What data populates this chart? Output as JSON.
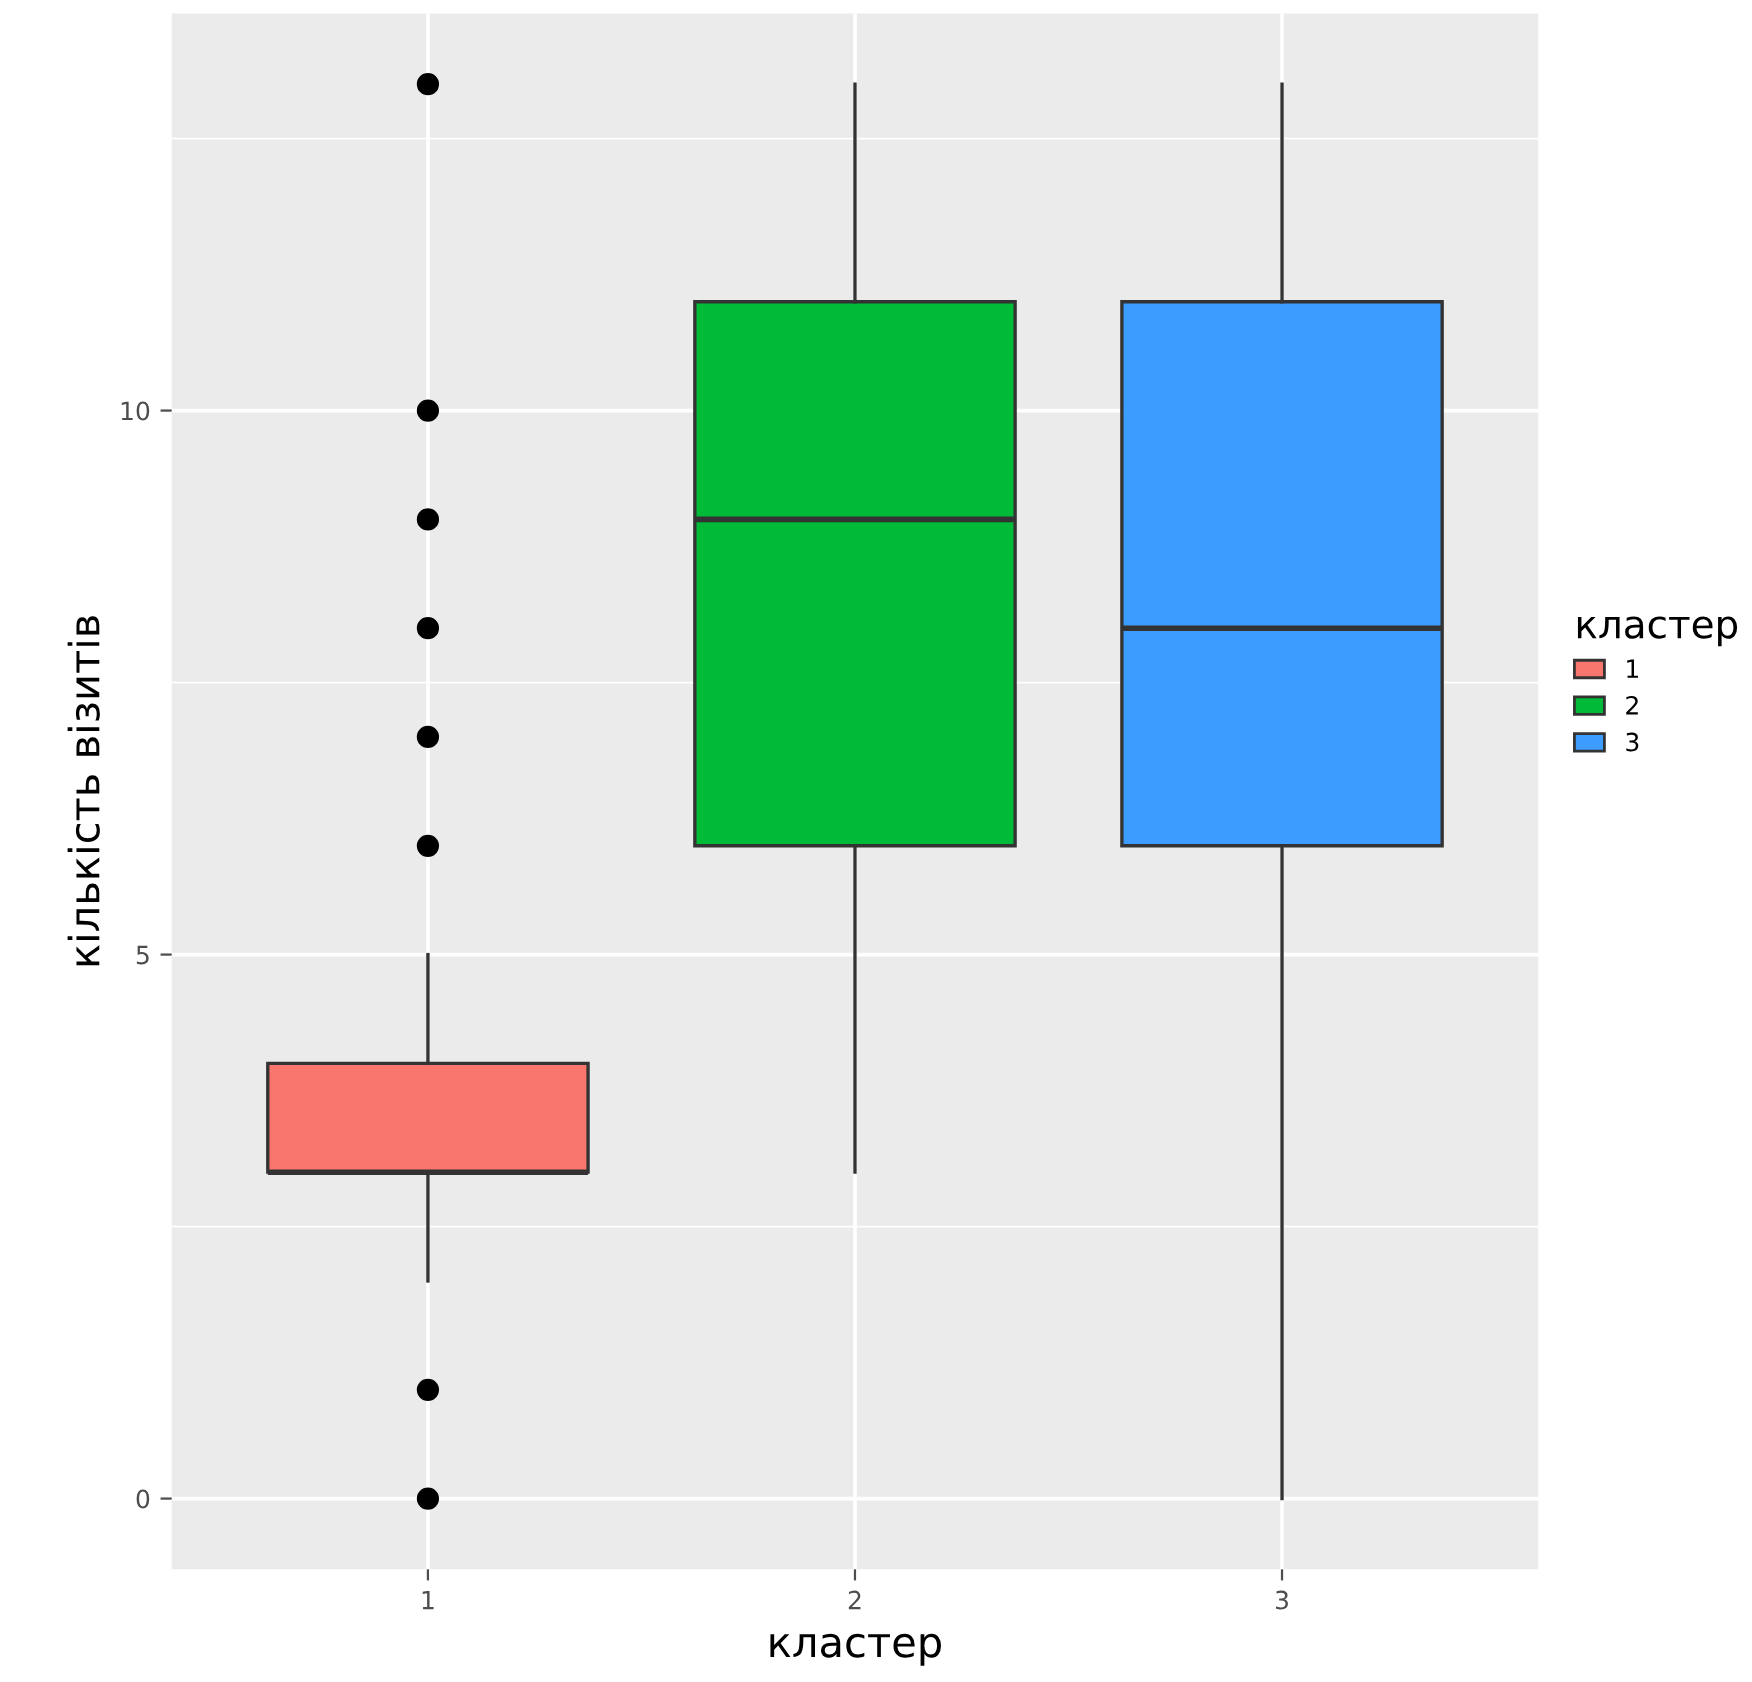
{
  "chart_data": {
    "type": "box",
    "xlabel": "кластер",
    "ylabel": "кількість візитів",
    "legend_title": "кластер",
    "categories": [
      "1",
      "2",
      "3"
    ],
    "series": [
      {
        "name": "1",
        "color": "#f8766d",
        "boxes": [
          {
            "low": 2,
            "q1": 3,
            "median": 3,
            "q3": 4,
            "high": 5,
            "outliers": [
              0,
              1,
              6,
              7,
              8,
              9,
              10,
              13
            ]
          },
          null,
          null
        ]
      },
      {
        "name": "2",
        "color": "#00ba38",
        "boxes": [
          null,
          {
            "low": 3,
            "q1": 6,
            "median": 9,
            "q3": 11,
            "high": 13
          },
          null
        ]
      },
      {
        "name": "3",
        "color": "#3d9cff",
        "boxes": [
          null,
          null,
          {
            "low": 0,
            "q1": 6,
            "median": 8,
            "q3": 11,
            "high": 13
          }
        ]
      }
    ],
    "ylim": [
      -0.65,
      13.65
    ],
    "yticks": [
      0,
      {
        "value": 2.5,
        "label": null
      },
      5,
      {
        "value": 7.5,
        "label": null
      },
      10,
      {
        "value": 12.5,
        "label": null
      }
    ],
    "grid": true,
    "legend": "right"
  }
}
